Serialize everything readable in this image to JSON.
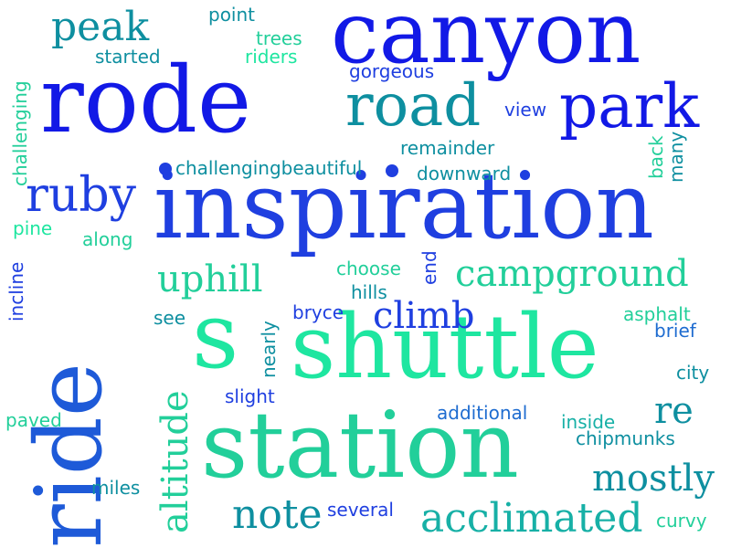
{
  "words": {
    "canyon": "canyon",
    "rode": "rode",
    "inspiration": "inspiration",
    "ride": "ride",
    "shuttle": "shuttle",
    "station": "station",
    "s": "s",
    "road": "road",
    "park": "park",
    "ruby": "ruby",
    "peak": "peak",
    "point": "point",
    "trees": "trees",
    "riders": "riders",
    "started": "started",
    "gorgeous": "gorgeous",
    "challenging_v": "challenging",
    "view": "view",
    "remainder": "remainder",
    "back": "back",
    "many": "many",
    "challengingbeautiful": "challengingbeautiful",
    "downward": "downward",
    "pine": "pine",
    "along": "along",
    "uphill": "uphill",
    "choose": "choose",
    "end": "end",
    "campground": "campground",
    "hills": "hills",
    "incline": "incline",
    "see": "see",
    "bryce": "bryce",
    "climb": "climb",
    "nearly": "nearly",
    "asphalt": "asphalt",
    "brief": "brief",
    "city": "city",
    "slight": "slight",
    "altitude": "altitude",
    "paved": "paved",
    "additional": "additional",
    "re": "re",
    "inside": "inside",
    "chipmunks": "chipmunks",
    "mostly": "mostly",
    "miles": "miles",
    "note": "note",
    "several": "several",
    "acclimated": "acclimated",
    "curvy": "curvy"
  },
  "colors": {
    "deep_blue": "#1219e6",
    "blue": "#1f3fe0",
    "royal": "#2050d8",
    "teal": "#0e8fa0",
    "teal_light": "#17b0a6",
    "green": "#1ee6a0",
    "mint": "#22cf9a",
    "blue_mid": "#1e6cd0"
  }
}
